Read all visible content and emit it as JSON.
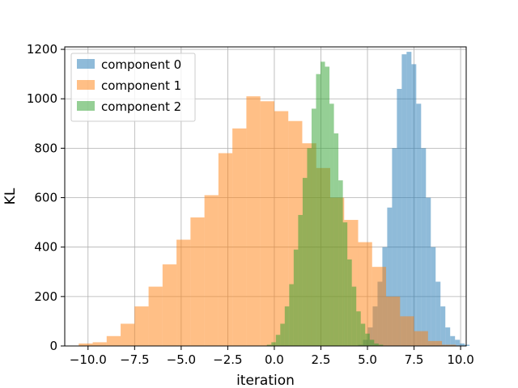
{
  "chart_data": {
    "type": "bar",
    "title": "",
    "xlabel": "iteration",
    "ylabel": "KL",
    "xlim": [
      -11.25,
      10.3
    ],
    "ylim": [
      0,
      1210
    ],
    "xticks": [
      -10.0,
      -7.5,
      -5.0,
      -2.5,
      0.0,
      2.5,
      5.0,
      7.5,
      10.0
    ],
    "xtick_labels": [
      "−10.0",
      "−7.5",
      "−5.0",
      "−2.5",
      "0.0",
      "2.5",
      "5.0",
      "7.5",
      "10.0"
    ],
    "yticks": [
      0,
      200,
      400,
      600,
      800,
      1000,
      1200
    ],
    "ytick_labels": [
      "0",
      "200",
      "400",
      "600",
      "800",
      "1000",
      "1200"
    ],
    "grid": true,
    "legend_position": "top-left",
    "alpha": 0.5,
    "series": [
      {
        "name": "component 0",
        "color": "#1f77b4",
        "bin_start": 4.5,
        "bin_width": 0.26,
        "counts": [
          5,
          25,
          75,
          160,
          260,
          400,
          560,
          800,
          1040,
          1180,
          1190,
          1140,
          980,
          800,
          600,
          400,
          260,
          160,
          75,
          40,
          25,
          10,
          5
        ]
      },
      {
        "name": "component 1",
        "color": "#ff7f0e",
        "bin_start": -10.5,
        "bin_width": 0.75,
        "counts": [
          10,
          15,
          40,
          90,
          160,
          240,
          330,
          430,
          520,
          610,
          780,
          880,
          1010,
          990,
          950,
          910,
          820,
          720,
          600,
          510,
          420,
          320,
          200,
          120,
          60,
          20,
          5
        ]
      },
      {
        "name": "component 2",
        "color": "#2ca02c",
        "bin_start": -0.4,
        "bin_width": 0.24,
        "counts": [
          5,
          15,
          45,
          90,
          160,
          250,
          390,
          530,
          680,
          800,
          960,
          1100,
          1150,
          1130,
          980,
          860,
          670,
          500,
          350,
          240,
          140,
          90,
          50,
          25,
          10,
          5
        ]
      }
    ]
  }
}
